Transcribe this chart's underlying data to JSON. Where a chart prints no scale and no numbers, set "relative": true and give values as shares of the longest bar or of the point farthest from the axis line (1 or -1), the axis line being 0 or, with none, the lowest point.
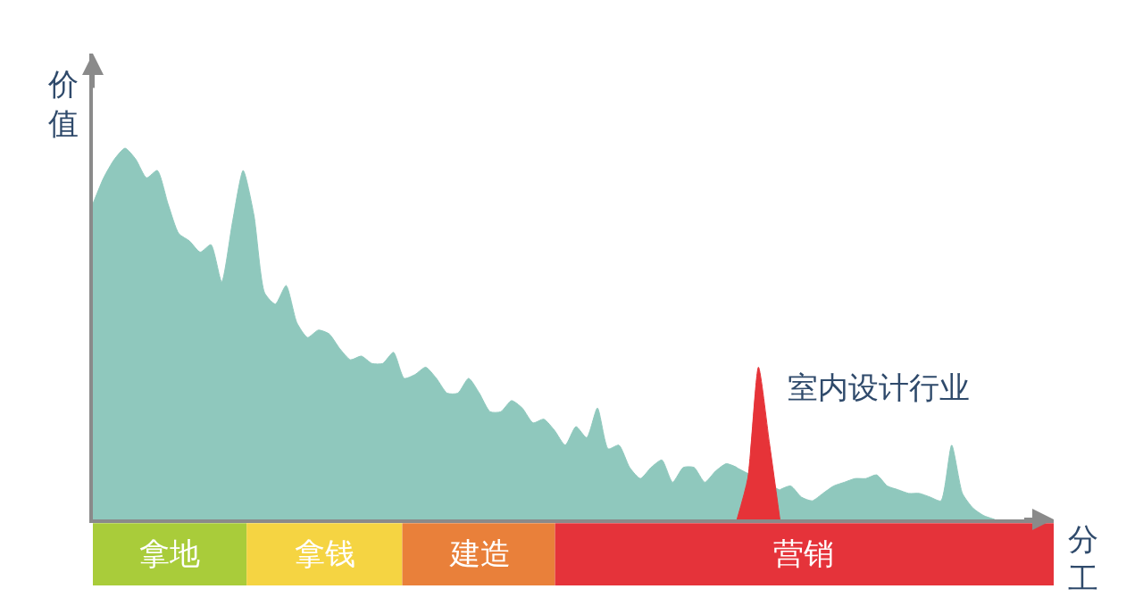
{
  "chart_data": {
    "type": "area",
    "relative": true,
    "xlabel": "分工",
    "ylabel": "价值",
    "tick_labels": false,
    "categories": [
      null,
      null,
      null,
      null,
      null,
      null,
      null,
      null,
      null,
      null,
      null,
      null,
      null,
      null,
      null,
      null,
      null,
      null,
      null,
      null,
      null,
      null,
      null,
      null,
      null,
      null,
      null,
      null,
      null,
      null,
      null,
      null,
      null,
      null,
      null,
      null,
      null,
      null,
      null,
      null,
      null,
      null,
      null,
      null,
      null,
      null,
      null,
      null,
      null,
      null,
      null,
      null,
      null,
      null,
      null,
      null,
      null,
      null,
      null,
      null,
      null,
      null,
      null,
      null,
      null,
      null,
      null,
      null,
      null,
      null,
      null,
      null,
      null,
      null,
      null,
      null,
      null,
      null,
      null,
      null,
      null,
      null,
      null,
      null,
      null
    ],
    "series": [
      {
        "color": "#8fc8bd",
        "values": [
          0.85,
          0.92,
          0.97,
          1,
          0.97,
          0.92,
          0.94,
          0.85,
          0.77,
          0.75,
          0.72,
          0.74,
          0.64,
          0.8,
          0.94,
          0.82,
          0.61,
          0.58,
          0.63,
          0.53,
          0.49,
          0.51,
          0.5,
          0.46,
          0.43,
          0.44,
          0.42,
          0.42,
          0.45,
          0.38,
          0.39,
          0.41,
          0.38,
          0.34,
          0.34,
          0.38,
          0.34,
          0.29,
          0.29,
          0.32,
          0.3,
          0.26,
          0.27,
          0.24,
          0.2,
          0.25,
          0.22,
          0.3,
          0.19,
          0.2,
          0.14,
          0.11,
          0.14,
          0.16,
          0.1,
          0.14,
          0.14,
          0.1,
          0.13,
          0.15,
          0.14,
          null,
          null,
          null,
          0.08,
          0.09,
          0.06,
          0.05,
          0.07,
          0.09,
          0.1,
          0.11,
          0.11,
          0.12,
          0.09,
          0.08,
          0.07,
          0.07,
          0.06,
          0.05,
          0.2,
          0.07,
          0.03,
          0.01,
          0
        ]
      },
      {
        "color": "#e63338",
        "values": [
          null,
          null,
          null,
          null,
          null,
          null,
          null,
          null,
          null,
          null,
          null,
          null,
          null,
          null,
          null,
          null,
          null,
          null,
          null,
          null,
          null,
          null,
          null,
          null,
          null,
          null,
          null,
          null,
          null,
          null,
          null,
          null,
          null,
          null,
          null,
          null,
          null,
          null,
          null,
          null,
          null,
          null,
          null,
          null,
          null,
          null,
          null,
          null,
          null,
          null,
          null,
          null,
          null,
          null,
          null,
          null,
          null,
          null,
          null,
          null,
          0,
          0.11,
          0.41,
          0.21,
          0,
          null,
          null,
          null,
          null,
          null,
          null,
          null,
          null,
          null,
          null,
          null,
          null,
          null,
          null,
          null,
          null,
          null,
          null,
          null,
          null
        ]
      }
    ],
    "annotations": [
      "室内设计行业",
      "拿地",
      "拿钱",
      "建造",
      "营销"
    ]
  }
}
